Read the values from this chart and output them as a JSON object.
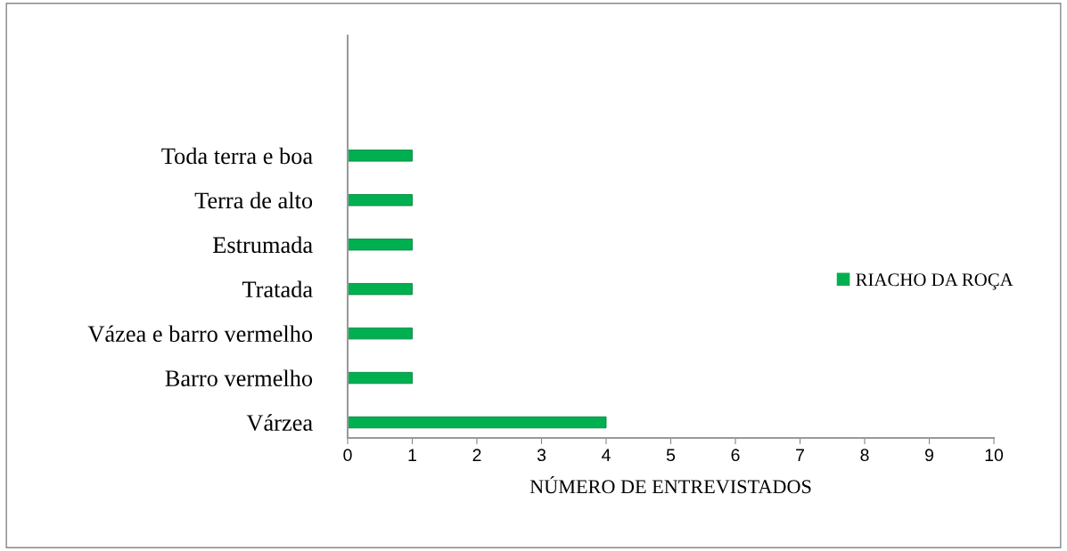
{
  "chart_data": {
    "type": "bar",
    "orientation": "horizontal",
    "xlabel": "NÚMERO DE ENTREVISTADOS",
    "categories": [
      "Toda terra e boa",
      "Terra de alto",
      "Estrumada",
      "Tratada",
      "Vázea e barro vermelho",
      "Barro vermelho",
      "Várzea"
    ],
    "series": [
      {
        "name": "RIACHO DA ROÇA",
        "color": "#00b050",
        "values": [
          1,
          1,
          1,
          1,
          1,
          1,
          4
        ]
      }
    ],
    "xlim": [
      0,
      10
    ],
    "xticks": [
      0,
      1,
      2,
      3,
      4,
      5,
      6,
      7,
      8,
      9,
      10
    ],
    "grid": false,
    "legend": "right"
  }
}
